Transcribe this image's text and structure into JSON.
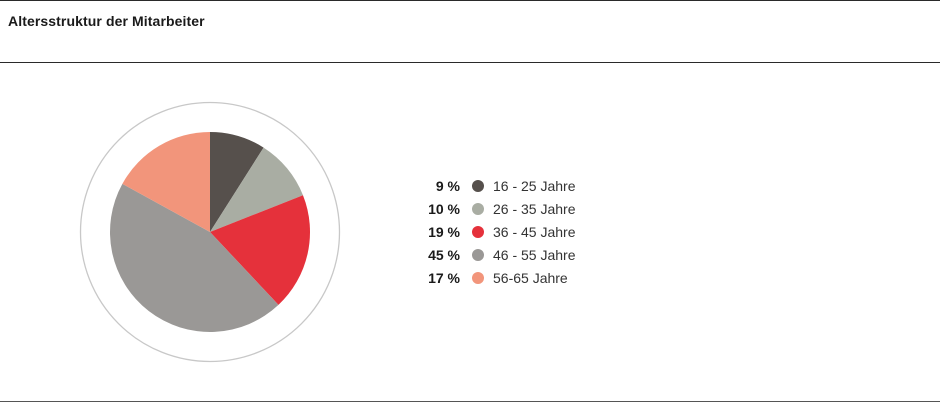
{
  "title": "Altersstruktur der Mitarbeiter",
  "chart_data": {
    "type": "pie",
    "title": "Altersstruktur der Mitarbeiter",
    "categories": [
      "16 - 25 Jahre",
      "26 - 35 Jahre",
      "36 - 45 Jahre",
      "46 - 55 Jahre",
      "56-65 Jahre"
    ],
    "values": [
      9,
      10,
      19,
      45,
      17
    ],
    "value_labels": [
      "9 %",
      "10 %",
      "19 %",
      "45 %",
      "17 %"
    ],
    "colors": [
      "#56504c",
      "#a9ada3",
      "#e5313b",
      "#9a9896",
      "#f2957b"
    ],
    "outer_ring_color": "#c8c8c8",
    "legend_placement": "right"
  }
}
